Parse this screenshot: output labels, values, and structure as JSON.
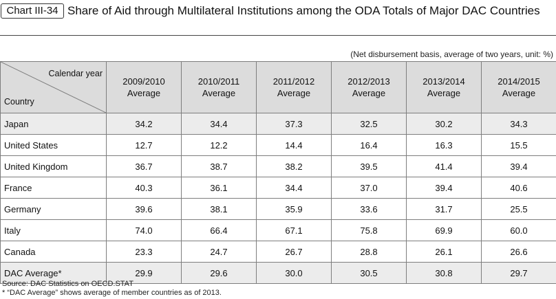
{
  "chart_data": {
    "type": "table",
    "label": "Chart III-34",
    "title": "Share of Aid through Multilateral Institutions among the ODA Totals of Major DAC Countries",
    "unit_note": "(Net disbursement basis, average of two years, unit: %)",
    "corner": {
      "column_axis": "Calendar year",
      "row_axis": "Country"
    },
    "columns": [
      "2009/2010 Average",
      "2010/2011 Average",
      "2011/2012 Average",
      "2012/2013 Average",
      "2013/2014 Average",
      "2014/2015 Average"
    ],
    "rows": [
      {
        "country": "Japan",
        "values": [
          "34.2",
          "34.4",
          "37.3",
          "32.5",
          "30.2",
          "34.3"
        ]
      },
      {
        "country": "United States",
        "values": [
          "12.7",
          "12.2",
          "14.4",
          "16.4",
          "16.3",
          "15.5"
        ]
      },
      {
        "country": "United Kingdom",
        "values": [
          "36.7",
          "38.7",
          "38.2",
          "39.5",
          "41.4",
          "39.4"
        ]
      },
      {
        "country": "France",
        "values": [
          "40.3",
          "36.1",
          "34.4",
          "37.0",
          "39.4",
          "40.6"
        ]
      },
      {
        "country": "Germany",
        "values": [
          "39.6",
          "38.1",
          "35.9",
          "33.6",
          "31.7",
          "25.5"
        ]
      },
      {
        "country": "Italy",
        "values": [
          "74.0",
          "66.4",
          "67.1",
          "75.8",
          "69.9",
          "60.0"
        ]
      },
      {
        "country": "Canada",
        "values": [
          "23.3",
          "24.7",
          "26.7",
          "28.8",
          "26.1",
          "26.6"
        ]
      },
      {
        "country": "DAC Average*",
        "values": [
          "29.9",
          "29.6",
          "30.0",
          "30.5",
          "30.8",
          "29.7"
        ]
      }
    ],
    "highlighted_rows": [
      "Japan",
      "DAC Average*"
    ],
    "footnotes": [
      "Source: DAC Statistics on OECD.STAT",
      "* “DAC Average” shows average of member countries as of 2013."
    ]
  },
  "colors": {
    "header_bg": "#dcdcdc",
    "highlight_bg": "#ececec",
    "grid": "#7d7d7d",
    "text": "#111111"
  }
}
